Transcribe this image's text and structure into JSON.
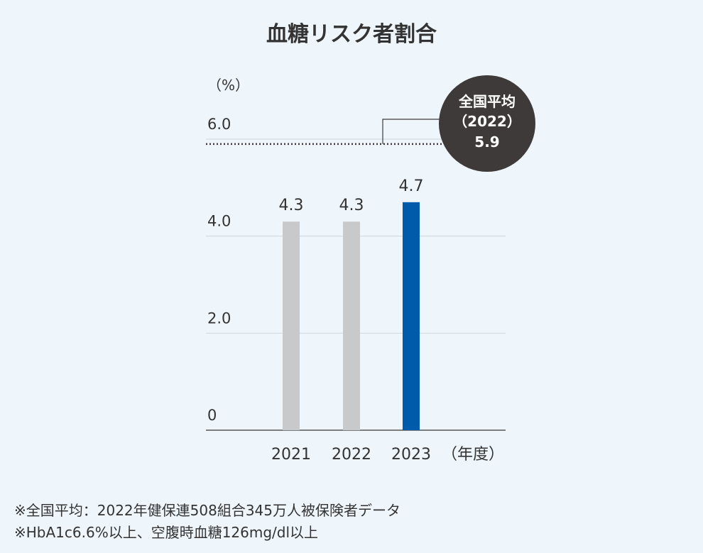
{
  "chart_data": {
    "type": "bar",
    "title": "血糖リスク者割合",
    "ylabel": "（%）",
    "xlabel": "（年度）",
    "categories": [
      "2021",
      "2022",
      "2023"
    ],
    "values": [
      4.3,
      4.3,
      4.7
    ],
    "data_labels": [
      "4.3",
      "4.3",
      "4.7"
    ],
    "ylim": [
      0,
      6.0
    ],
    "yticks": [
      0,
      2.0,
      4.0,
      6.0
    ],
    "ytick_labels": [
      "0",
      "2.0",
      "4.0",
      "6.0"
    ],
    "grid": true,
    "bar_colors": [
      "#c8c9ca",
      "#c8c9ca",
      "#005bab"
    ],
    "reference_line": {
      "value": 5.9,
      "style": "dotted",
      "label_lines": [
        "全国平均",
        "（2022）",
        "5.9"
      ],
      "bubble_color": "#3e3a39"
    }
  },
  "notes": [
    "※全国平均：2022年健保連508組合345万人被保険者データ",
    "※HbA1c6.6%以上、空腹時血糖126mg/dl以上"
  ]
}
